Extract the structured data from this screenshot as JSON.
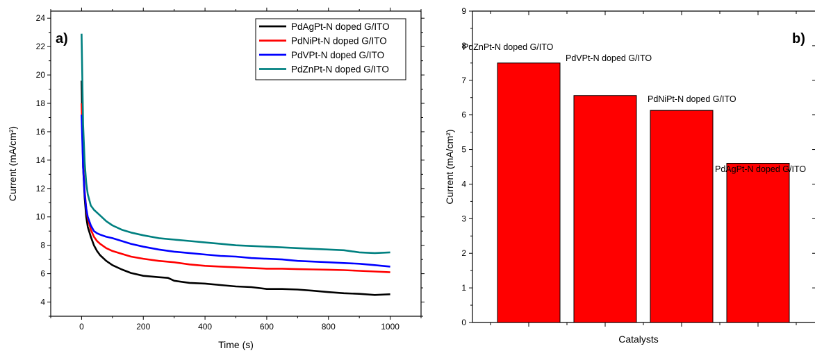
{
  "chart_data": [
    {
      "type": "line",
      "panel_label": "a)",
      "xlabel": "Time (s)",
      "ylabel": "Current (mA/cm²)",
      "xlim": [
        -100,
        1100
      ],
      "ylim": [
        3,
        24.5
      ],
      "xticks": [
        0,
        200,
        400,
        600,
        800,
        1000
      ],
      "yticks": [
        4,
        6,
        8,
        10,
        12,
        14,
        16,
        18,
        20,
        22,
        24
      ],
      "grid": false,
      "legend_position": "top-right",
      "series": [
        {
          "name": "PdAgPt-N doped G/ITO",
          "color": "#000000",
          "x": [
            0,
            5,
            10,
            15,
            20,
            30,
            40,
            50,
            60,
            80,
            100,
            130,
            160,
            200,
            250,
            280,
            300,
            350,
            400,
            450,
            500,
            550,
            600,
            650,
            700,
            750,
            800,
            850,
            900,
            950,
            1000
          ],
          "y": [
            19.6,
            13.5,
            11.3,
            10.0,
            9.3,
            8.6,
            8.0,
            7.6,
            7.3,
            6.9,
            6.6,
            6.3,
            6.05,
            5.85,
            5.75,
            5.7,
            5.5,
            5.35,
            5.3,
            5.2,
            5.1,
            5.05,
            4.92,
            4.92,
            4.88,
            4.8,
            4.7,
            4.62,
            4.58,
            4.5,
            4.55
          ]
        },
        {
          "name": "PdNiPt-N doped G/ITO",
          "color": "#ff0000",
          "x": [
            0,
            5,
            10,
            15,
            20,
            30,
            40,
            50,
            60,
            80,
            100,
            130,
            160,
            200,
            250,
            300,
            350,
            400,
            450,
            500,
            550,
            600,
            650,
            700,
            750,
            800,
            850,
            900,
            950,
            1000
          ],
          "y": [
            18.0,
            13.8,
            11.8,
            10.6,
            9.9,
            9.1,
            8.6,
            8.3,
            8.1,
            7.8,
            7.6,
            7.4,
            7.2,
            7.05,
            6.9,
            6.8,
            6.65,
            6.55,
            6.5,
            6.45,
            6.4,
            6.35,
            6.35,
            6.32,
            6.3,
            6.28,
            6.25,
            6.2,
            6.15,
            6.1
          ]
        },
        {
          "name": "PdVPt-N doped G/ITO",
          "color": "#0000ff",
          "x": [
            0,
            5,
            10,
            15,
            20,
            30,
            40,
            50,
            60,
            80,
            100,
            130,
            160,
            200,
            250,
            300,
            350,
            400,
            450,
            500,
            550,
            600,
            650,
            700,
            750,
            800,
            850,
            900,
            950,
            1000
          ],
          "y": [
            17.2,
            13.5,
            11.6,
            10.6,
            10.0,
            9.4,
            9.0,
            8.85,
            8.75,
            8.6,
            8.5,
            8.3,
            8.1,
            7.9,
            7.7,
            7.55,
            7.45,
            7.35,
            7.25,
            7.2,
            7.1,
            7.05,
            7.0,
            6.9,
            6.85,
            6.8,
            6.75,
            6.7,
            6.6,
            6.5
          ]
        },
        {
          "name": "PdZnPt-N doped G/ITO",
          "color": "#008080",
          "x": [
            0,
            5,
            10,
            15,
            20,
            30,
            40,
            50,
            60,
            80,
            100,
            130,
            160,
            200,
            250,
            300,
            350,
            400,
            450,
            500,
            550,
            600,
            650,
            700,
            750,
            800,
            850,
            900,
            950,
            1000
          ],
          "y": [
            22.9,
            16.5,
            13.8,
            12.4,
            11.6,
            10.8,
            10.5,
            10.3,
            10.1,
            9.7,
            9.4,
            9.1,
            8.9,
            8.7,
            8.5,
            8.4,
            8.3,
            8.2,
            8.1,
            8.0,
            7.95,
            7.9,
            7.85,
            7.8,
            7.75,
            7.7,
            7.65,
            7.5,
            7.45,
            7.5
          ]
        }
      ]
    },
    {
      "type": "bar",
      "panel_label": "b)",
      "xlabel": "Catalysts",
      "ylabel": "Current (mA/cm²)",
      "ylim": [
        0,
        9
      ],
      "yticks": [
        0,
        1,
        2,
        3,
        4,
        5,
        6,
        7,
        8,
        9
      ],
      "grid": false,
      "bar_color": "#ff0000",
      "categories": [
        "PdZnPt-N doped G/ITO",
        "PdVPt-N doped G/ITO",
        "PdNiPt-N doped G/ITO",
        "PdAgPt-N doped G/ITO"
      ],
      "values": [
        7.5,
        6.56,
        6.13,
        4.6
      ]
    }
  ]
}
